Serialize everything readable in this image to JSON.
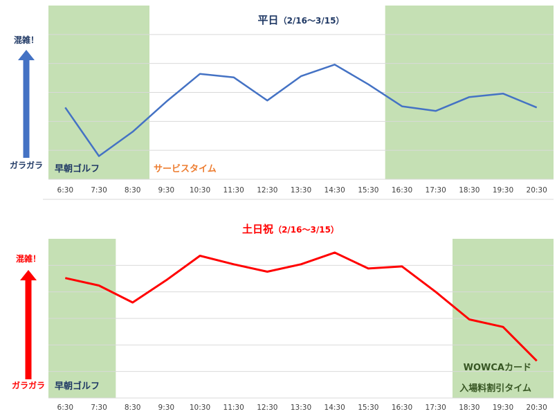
{
  "chart_data": [
    {
      "type": "line",
      "title": "平日",
      "subtitle": "（2/16～3/15）",
      "categories": [
        "6:30",
        "7:30",
        "8:30",
        "9:30",
        "10:30",
        "11:30",
        "12:30",
        "13:30",
        "14:30",
        "15:30",
        "16:30",
        "17:30",
        "18:30",
        "19:30",
        "20:30"
      ],
      "series": [
        {
          "values": [
            62,
            20,
            41,
            67,
            91,
            88,
            68,
            89,
            99,
            82,
            63,
            59,
            71,
            74,
            62
          ]
        }
      ],
      "ylim": [
        0,
        150
      ],
      "grid": true,
      "y_high_label": "混雑！",
      "y_low_label": "ガラガラ",
      "zones": [
        {
          "from": 0,
          "to": 2,
          "label": "早朝ゴルフ",
          "label_color": "#1f3864",
          "label_pos": "left"
        },
        {
          "from": 10,
          "to": 14,
          "label": "",
          "label_color": "#1f3864",
          "label_pos": "left"
        }
      ],
      "annotations": [
        {
          "text": "サービスタイム",
          "after_category": 2,
          "color": "#ed7d31"
        }
      ],
      "line_color": "#4472c4",
      "accent_color": "#4472c4",
      "title_color": "#1f3864",
      "zone_color": "#c5e0b4"
    },
    {
      "type": "line",
      "title": "土日祝",
      "subtitle": "（2/16～3/15）",
      "categories": [
        "6:30",
        "7:30",
        "8:30",
        "9:30",
        "10:30",
        "11:30",
        "12:30",
        "13:30",
        "14:30",
        "15:30",
        "16:30",
        "17:30",
        "18:30",
        "19:30",
        "20:30"
      ],
      "series": [
        {
          "values": [
            113,
            106,
            90,
            111,
            134,
            126,
            119,
            126,
            137,
            122,
            124,
            100,
            74,
            67,
            35
          ]
        }
      ],
      "ylim": [
        0,
        150
      ],
      "grid": true,
      "y_high_label": "混雑！",
      "y_low_label": "ガラガラ",
      "zones": [
        {
          "from": 0,
          "to": 1,
          "label": "早朝ゴルフ",
          "label_color": "#1f3864",
          "label_pos": "left"
        },
        {
          "from": 12,
          "to": 14,
          "label": "WOWCAカード",
          "label2": "入場料割引タイム",
          "label_color": "#375623",
          "label_pos": "right"
        }
      ],
      "annotations": [],
      "line_color": "#ff0000",
      "accent_color": "#ff0000",
      "title_color": "#ff0000",
      "zone_color": "#c5e0b4"
    }
  ]
}
